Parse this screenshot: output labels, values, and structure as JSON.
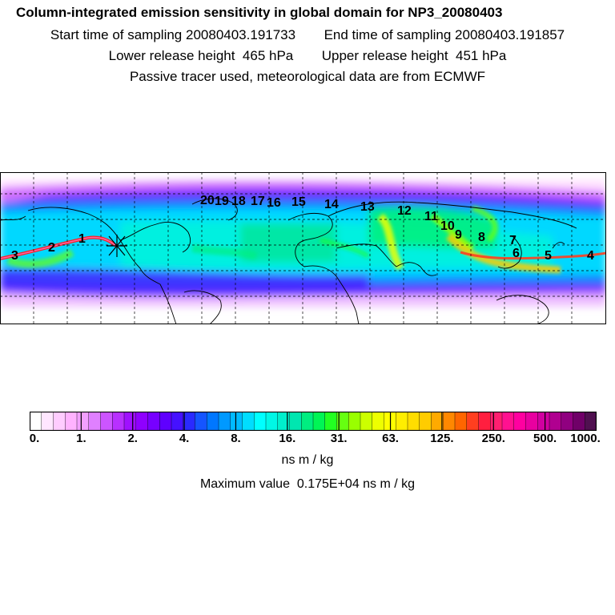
{
  "header": {
    "title": "Column-integrated emission sensitivity in global domain for NP3_20080403",
    "start_label": "Start time of sampling",
    "start_value": "20080403.191733",
    "end_label": "End time of sampling",
    "end_value": "20080403.191857",
    "lower_label": "Lower release height",
    "lower_value": "465 hPa",
    "upper_label": "Upper release height",
    "upper_value": "451 hPa",
    "tracer_note": "Passive tracer used, meteorological data are from ECMWF"
  },
  "map": {
    "point_labels": [
      "1",
      "2",
      "3",
      "4",
      "5",
      "6",
      "7",
      "8",
      "9",
      "10",
      "11",
      "12",
      "13",
      "14",
      "15",
      "16",
      "17",
      "18",
      "19",
      "20"
    ],
    "release_marker": "asterisk",
    "colors": {
      "background": "#ffffff",
      "coastline": "#000000",
      "grid": "#000000",
      "track": "#ff1f1f"
    }
  },
  "colorbar": {
    "tick_labels": [
      "0.",
      "1.",
      "2.",
      "4.",
      "8.",
      "16.",
      "31.",
      "63.",
      "125.",
      "250.",
      "500.",
      "1000."
    ],
    "colors": [
      "#ffffff",
      "#ffe6ff",
      "#ffccff",
      "#ffb3ff",
      "#f2a0ff",
      "#e080ff",
      "#cc55ff",
      "#b830ff",
      "#a010ff",
      "#8f00ff",
      "#7700ff",
      "#5f00ff",
      "#4511ff",
      "#2a2aff",
      "#1555ff",
      "#0077ff",
      "#0099ff",
      "#00bbff",
      "#00ddff",
      "#00ffff",
      "#00f7e6",
      "#00efcc",
      "#00e6b0",
      "#00ee80",
      "#00f555",
      "#22ff22",
      "#66ff11",
      "#99ff00",
      "#ccff00",
      "#eeff00",
      "#ffff00",
      "#ffee00",
      "#ffdd00",
      "#ffcc00",
      "#ffaa00",
      "#ff8800",
      "#ff6600",
      "#ff3f1f",
      "#ff1f3f",
      "#ff1f70",
      "#ff1190",
      "#ff00a0",
      "#e800a0",
      "#d000a0",
      "#b00090",
      "#900080",
      "#700068",
      "#501050"
    ],
    "units": "ns m / kg",
    "max_label": "Maximum value",
    "max_value": "0.175E+04 ns m / kg"
  }
}
